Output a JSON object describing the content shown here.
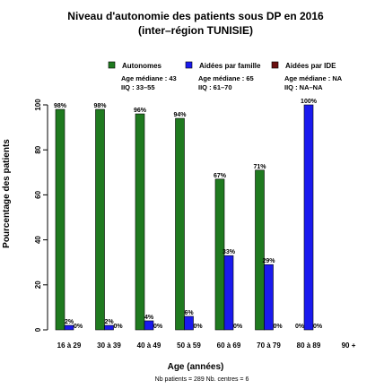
{
  "chart_data": {
    "type": "bar",
    "title": "Niveau d'autonomie des patients sous DP en 2016",
    "subtitle": "(inter–région TUNISIE)",
    "xlabel": "Age (années)",
    "ylabel": "Pourcentage des patients",
    "ylim": [
      0,
      100
    ],
    "yticks": [
      0,
      20,
      40,
      60,
      80,
      100
    ],
    "categories": [
      "16 à 29",
      "30 à 39",
      "40 à 49",
      "50 à 59",
      "60 à 69",
      "70 à 79",
      "80 à 89",
      "90 +"
    ],
    "series": [
      {
        "name": "Autonomes",
        "color": "#1f7a1f",
        "values": [
          98,
          98,
          96,
          94,
          67,
          71,
          0,
          null
        ],
        "labels": [
          "98%",
          "98%",
          "96%",
          "94%",
          "67%",
          "71%",
          "0%",
          ""
        ],
        "stats": [
          "Age médiane : 43",
          "IIQ : 33–55"
        ]
      },
      {
        "name": "Aidées par famille",
        "color": "#1a1aee",
        "values": [
          2,
          2,
          4,
          6,
          33,
          29,
          100,
          null
        ],
        "labels": [
          "2%",
          "2%",
          "4%",
          "6%",
          "33%",
          "29%",
          "100%",
          ""
        ],
        "stats": [
          "Age médiane : 65",
          "IIQ : 61–70"
        ]
      },
      {
        "name": "Aidées par IDE",
        "color": "#6b1010",
        "values": [
          0,
          0,
          0,
          0,
          0,
          0,
          0,
          null
        ],
        "labels": [
          "0%",
          "0%",
          "0%",
          "0%",
          "0%",
          "0%",
          "0%",
          ""
        ],
        "stats": [
          "Age médiane : NA",
          "IIQ : NA–NA"
        ]
      }
    ],
    "legend_position": "top",
    "footer": "Nb patients = 289    Nb. centres = 6"
  }
}
